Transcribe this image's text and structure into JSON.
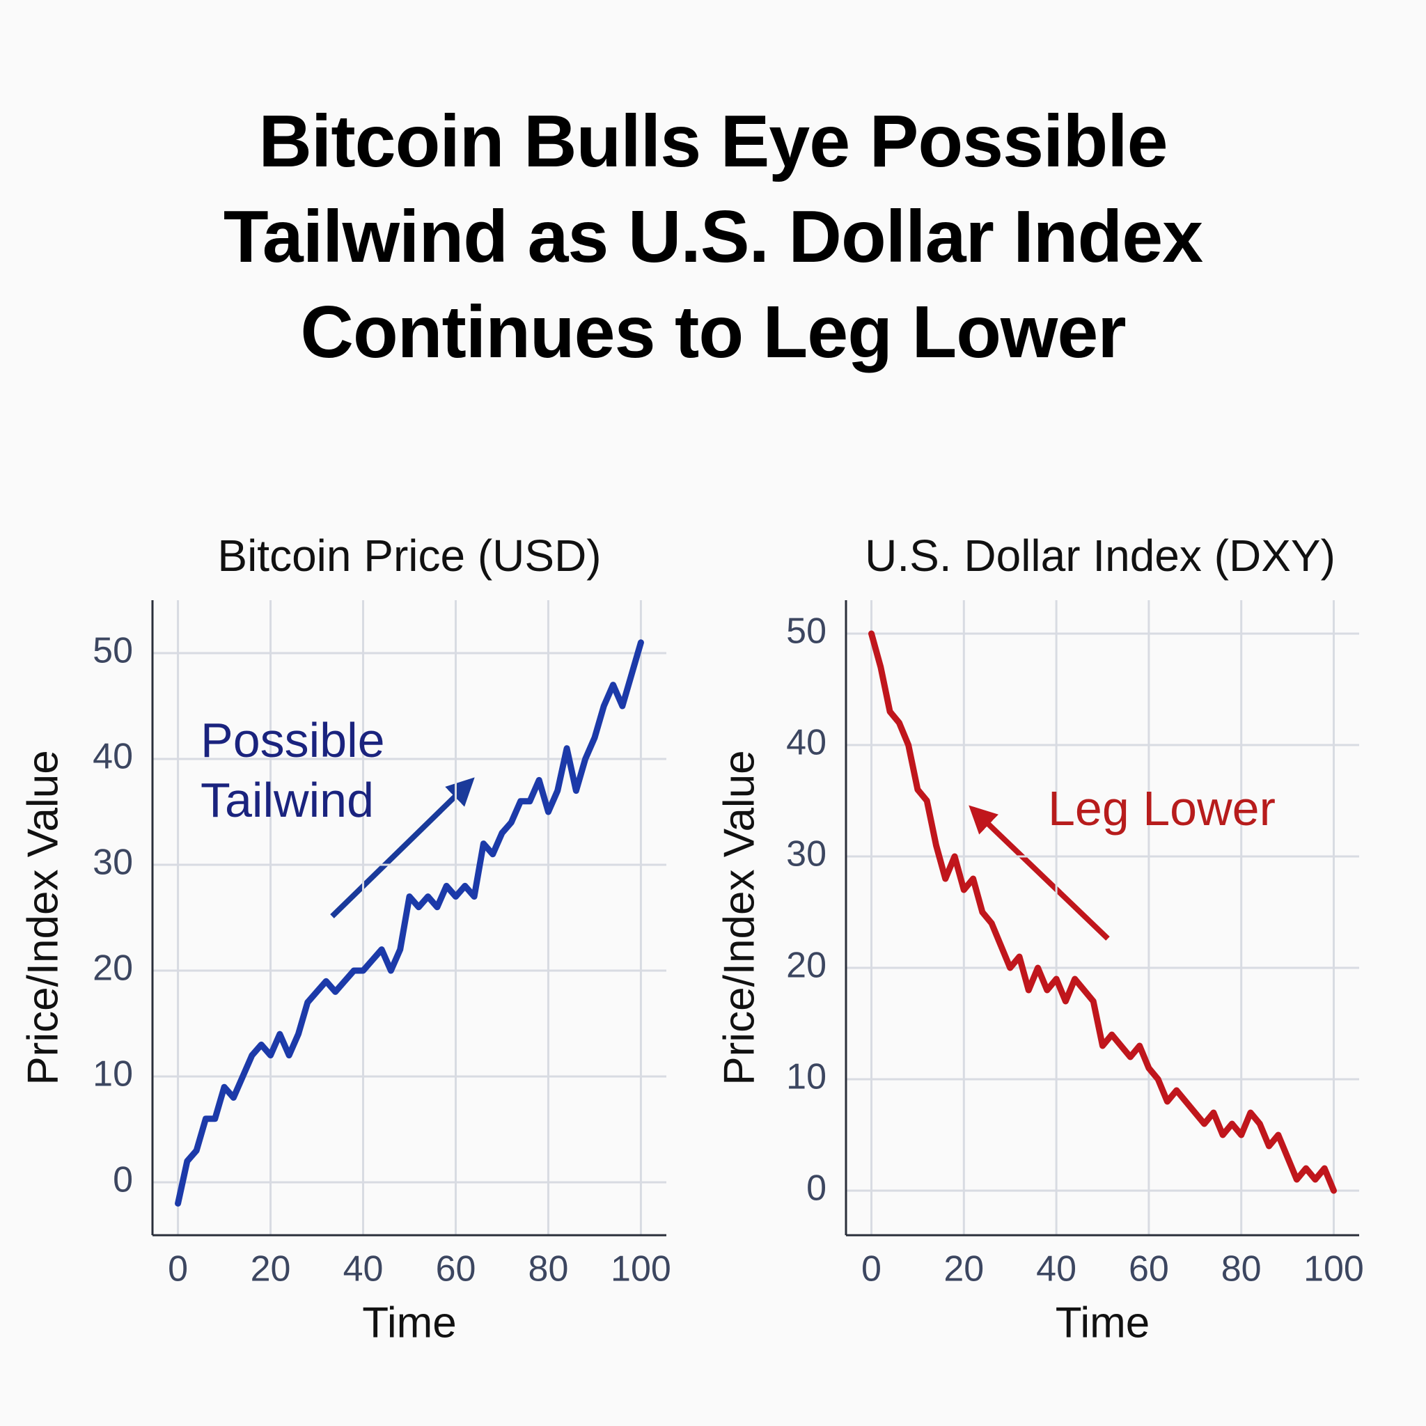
{
  "title": "Bitcoin Bulls Eye Possible Tailwind as U.S. Dollar Index Continues to Leg Lower",
  "chart_data": [
    {
      "type": "line",
      "title": "Bitcoin Price (USD)",
      "x_label": "Time",
      "y_label": "Price/Index Value",
      "annotation": "Possible Tailwind",
      "x": [
        0,
        2,
        4,
        6,
        8,
        10,
        12,
        14,
        16,
        18,
        20,
        22,
        24,
        26,
        28,
        30,
        32,
        34,
        36,
        38,
        40,
        42,
        44,
        46,
        48,
        50,
        52,
        54,
        56,
        58,
        60,
        62,
        64,
        66,
        68,
        70,
        72,
        74,
        76,
        78,
        80,
        82,
        84,
        86,
        88,
        90,
        92,
        94,
        96,
        98,
        100
      ],
      "series": [
        {
          "name": "Bitcoin Price",
          "color": "#1c3aa9",
          "values": [
            -2,
            2,
            3,
            6,
            6,
            9,
            8,
            10,
            12,
            13,
            12,
            14,
            12,
            14,
            17,
            18,
            19,
            18,
            19,
            20,
            20,
            21,
            22,
            20,
            22,
            27,
            26,
            27,
            26,
            28,
            27,
            28,
            27,
            32,
            31,
            33,
            34,
            36,
            36,
            38,
            35,
            37,
            41,
            37,
            40,
            42,
            45,
            47,
            45,
            48,
            51
          ]
        }
      ],
      "xlim": [
        -5.5,
        105.5
      ],
      "ylim": [
        -5,
        55
      ],
      "xticks": [
        0,
        20,
        40,
        60,
        80,
        100
      ],
      "yticks": [
        0,
        10,
        20,
        30,
        40,
        50
      ],
      "grid": true
    },
    {
      "type": "line",
      "title": "U.S. Dollar Index (DXY)",
      "x_label": "Time",
      "y_label": "Price/Index Value",
      "annotation": "Leg Lower",
      "x": [
        0,
        2,
        4,
        6,
        8,
        10,
        12,
        14,
        16,
        18,
        20,
        22,
        24,
        26,
        28,
        30,
        32,
        34,
        36,
        38,
        40,
        42,
        44,
        46,
        48,
        50,
        52,
        54,
        56,
        58,
        60,
        62,
        64,
        66,
        68,
        70,
        72,
        74,
        76,
        78,
        80,
        82,
        84,
        86,
        88,
        90,
        92,
        94,
        96,
        98,
        100
      ],
      "series": [
        {
          "name": "U.S. Dollar Index",
          "color": "#c0161c",
          "values": [
            50,
            47,
            43,
            42,
            40,
            36,
            35,
            31,
            28,
            30,
            27,
            28,
            25,
            24,
            22,
            20,
            21,
            18,
            20,
            18,
            19,
            17,
            19,
            18,
            17,
            13,
            14,
            13,
            12,
            13,
            11,
            10,
            8,
            9,
            8,
            7,
            6,
            7,
            5,
            6,
            5,
            7,
            6,
            4,
            5,
            3,
            1,
            2,
            1,
            2,
            0
          ]
        }
      ],
      "xlim": [
        -5.5,
        105.5
      ],
      "ylim": [
        -4,
        53
      ],
      "xticks": [
        0,
        20,
        40,
        60,
        80,
        100
      ],
      "yticks": [
        0,
        10,
        20,
        30,
        40,
        50
      ],
      "grid": true
    }
  ]
}
